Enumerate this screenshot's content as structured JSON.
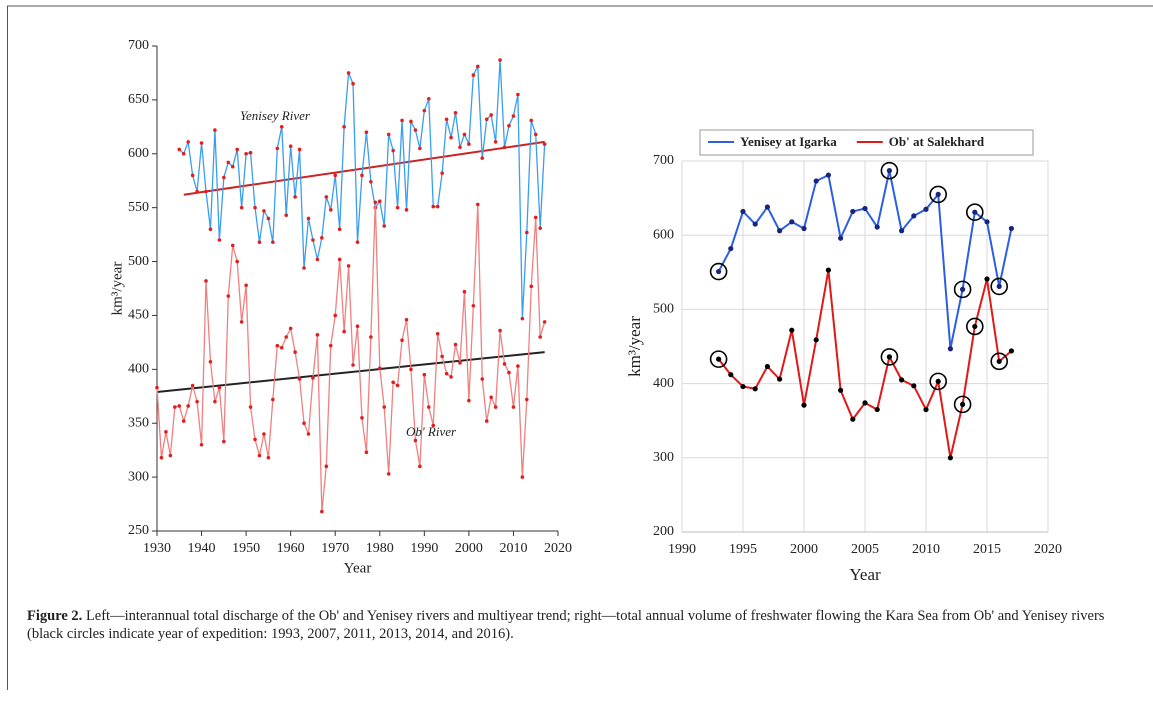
{
  "chart_data": [
    {
      "type": "line",
      "xlabel": "Year",
      "ylabel": "km³/year",
      "xlim": [
        1930,
        2020
      ],
      "xticks": [
        1930,
        1940,
        1950,
        1960,
        1970,
        1980,
        1990,
        2000,
        2010,
        2020
      ],
      "ylim": [
        250,
        700
      ],
      "yticks": [
        250,
        300,
        350,
        400,
        450,
        500,
        550,
        600,
        650,
        700
      ],
      "grid": false,
      "annotations": [
        "Yenisey River",
        "Ob' River"
      ],
      "series": [
        {
          "color": "#3a9ef0",
          "marker_color": "#e02020",
          "x": [
            1935,
            1936,
            1937,
            1938,
            1939,
            1940,
            1941,
            1942,
            1943,
            1944,
            1945,
            1946,
            1947,
            1948,
            1949,
            1950,
            1951,
            1952,
            1953,
            1954,
            1955,
            1956,
            1957,
            1958,
            1959,
            1960,
            1961,
            1962,
            1963,
            1964,
            1965,
            1966,
            1967,
            1968,
            1969,
            1970,
            1971,
            1972,
            1973,
            1974,
            1975,
            1976,
            1977,
            1978,
            1979,
            1980,
            1981,
            1982,
            1983,
            1984,
            1985,
            1986,
            1987,
            1988,
            1989,
            1990,
            1991,
            1992,
            1993,
            1994,
            1995,
            1996,
            1997,
            1998,
            1999,
            2000,
            2001,
            2002,
            2003,
            2004,
            2005,
            2006,
            2007,
            2008,
            2009,
            2010,
            2011,
            2012,
            2013,
            2014,
            2015,
            2016,
            2017
          ],
          "values": [
            604,
            600,
            611,
            580,
            565,
            610,
            565,
            530,
            622,
            520,
            578,
            592,
            588,
            604,
            550,
            600,
            601,
            550,
            518,
            547,
            540,
            518,
            605,
            625,
            543,
            607,
            560,
            604,
            494,
            540,
            520,
            502,
            522,
            560,
            548,
            580,
            530,
            625,
            675,
            665,
            518,
            580,
            620,
            574,
            550,
            556,
            533,
            618,
            603,
            550,
            631,
            548,
            630,
            622,
            605,
            640,
            651,
            551,
            551,
            582,
            632,
            615,
            638,
            606,
            618,
            609,
            673,
            681,
            596,
            632,
            636,
            611,
            687,
            606,
            626,
            635,
            655,
            447,
            527,
            631,
            618,
            531,
            609
          ]
        },
        {
          "color": "#f08080",
          "marker_color": "#e02020",
          "x": [
            1930,
            1931,
            1932,
            1933,
            1934,
            1935,
            1936,
            1937,
            1938,
            1939,
            1940,
            1941,
            1942,
            1943,
            1944,
            1945,
            1946,
            1947,
            1948,
            1949,
            1950,
            1951,
            1952,
            1953,
            1954,
            1955,
            1956,
            1957,
            1958,
            1959,
            1960,
            1961,
            1962,
            1963,
            1964,
            1965,
            1966,
            1967,
            1968,
            1969,
            1970,
            1971,
            1972,
            1973,
            1974,
            1975,
            1976,
            1977,
            1978,
            1979,
            1980,
            1981,
            1982,
            1983,
            1984,
            1985,
            1986,
            1987,
            1988,
            1989,
            1990,
            1991,
            1992,
            1993,
            1994,
            1995,
            1996,
            1997,
            1998,
            1999,
            2000,
            2001,
            2002,
            2003,
            2004,
            2005,
            2006,
            2007,
            2008,
            2009,
            2010,
            2011,
            2012,
            2013,
            2014,
            2015,
            2016,
            2017
          ],
          "values": [
            383,
            318,
            342,
            320,
            365,
            366,
            352,
            366,
            385,
            370,
            330,
            482,
            407,
            370,
            383,
            333,
            468,
            515,
            500,
            444,
            478,
            365,
            335,
            320,
            340,
            318,
            372,
            422,
            420,
            430,
            438,
            416,
            391,
            350,
            340,
            392,
            432,
            268,
            310,
            422,
            450,
            502,
            435,
            496,
            404,
            440,
            355,
            323,
            430,
            555,
            401,
            365,
            303,
            388,
            385,
            427,
            446,
            400,
            334,
            310,
            395,
            365,
            348,
            433,
            412,
            396,
            393,
            423,
            406,
            472,
            371,
            459,
            553,
            391,
            352,
            374,
            365,
            436,
            405,
            397,
            365,
            403,
            300,
            372,
            477,
            541,
            430,
            444
          ]
        }
      ],
      "trend_lines": [
        {
          "color": "#cc2222",
          "x": [
            1936,
            2017
          ],
          "values": [
            562,
            611
          ]
        },
        {
          "color": "#222222",
          "x": [
            1930,
            2017
          ],
          "values": [
            379,
            416
          ]
        }
      ]
    },
    {
      "type": "line",
      "xlabel": "Year",
      "ylabel": "km³/year",
      "xlim": [
        1990,
        2020
      ],
      "xticks": [
        1990,
        1995,
        2000,
        2005,
        2010,
        2015,
        2020
      ],
      "ylim": [
        200,
        700
      ],
      "yticks": [
        200,
        300,
        400,
        500,
        600,
        700
      ],
      "grid": true,
      "legend": "top",
      "highlight_x": [
        1993,
        2007,
        2011,
        2013,
        2014,
        2016
      ],
      "series": [
        {
          "name": "Yenisey at Igarka",
          "color": "#2b5fe0",
          "marker_color": "#1a237e",
          "x": [
            1993,
            1994,
            1995,
            1996,
            1997,
            1998,
            1999,
            2000,
            2001,
            2002,
            2003,
            2004,
            2005,
            2006,
            2007,
            2008,
            2009,
            2010,
            2011,
            2012,
            2013,
            2014,
            2015,
            2016,
            2017
          ],
          "values": [
            551,
            582,
            632,
            615,
            638,
            606,
            618,
            609,
            673,
            681,
            596,
            632,
            636,
            611,
            687,
            606,
            626,
            635,
            655,
            447,
            527,
            631,
            618,
            531,
            609
          ]
        },
        {
          "name": "Ob' at Salekhard",
          "color": "#e01818",
          "marker_color": "#000000",
          "x": [
            1993,
            1994,
            1995,
            1996,
            1997,
            1998,
            1999,
            2000,
            2001,
            2002,
            2003,
            2004,
            2005,
            2006,
            2007,
            2008,
            2009,
            2010,
            2011,
            2012,
            2013,
            2014,
            2015,
            2016,
            2017
          ],
          "values": [
            433,
            412,
            396,
            393,
            423,
            406,
            472,
            371,
            459,
            553,
            391,
            352,
            374,
            365,
            436,
            405,
            397,
            365,
            403,
            300,
            372,
            477,
            541,
            430,
            444
          ]
        }
      ]
    }
  ],
  "caption": {
    "label": "Figure 2.",
    "text": "Left—interannual total discharge of the Ob' and Yenisey rivers and multiyear trend; right—total annual volume of freshwater flowing the Kara Sea from Ob' and Yenisey rivers (black circles indicate year of expedition: 1993, 2007, 2011, 2013, 2014, and 2016)."
  }
}
